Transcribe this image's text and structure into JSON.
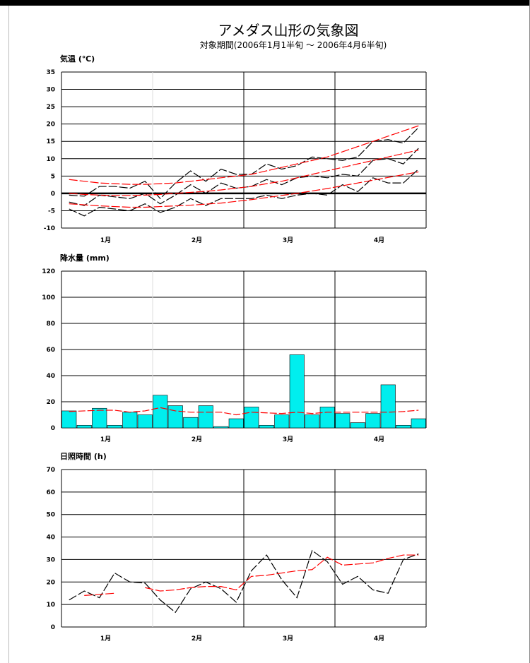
{
  "window": {
    "background": "#ffffff"
  },
  "header": {
    "title": "アメダス山形の気象図",
    "subtitle": "対象期間(2006年1月1半旬 〜 2006年4月6半旬)"
  },
  "colors": {
    "observed": "#000000",
    "normal": "#ff0000",
    "bars": "#00eeee",
    "grid": "#000000"
  },
  "chart_data": [
    {
      "type": "line",
      "title": "気温 (℃)",
      "ylim": [
        -10,
        35
      ],
      "yticks": [
        -10,
        -5,
        0,
        5,
        10,
        15,
        20,
        25,
        30,
        35
      ],
      "xtick_labels": [
        "1月",
        "2月",
        "3月",
        "4月"
      ],
      "grid": true,
      "zero_line": true,
      "x_count": 24,
      "series": [
        {
          "role": "observed-max",
          "style": "dashed",
          "color": "#000000",
          "values": [
            -0.5,
            -0.8,
            2,
            2,
            1.5,
            3.5,
            -1.5,
            3,
            6.5,
            3.5,
            7,
            5.5,
            5.5,
            8.5,
            7,
            8,
            10.5,
            10,
            9.5,
            10.5,
            15,
            15.5,
            14.5,
            19
          ]
        },
        {
          "role": "observed-mean",
          "style": "dashed",
          "color": "#000000",
          "values": [
            -2.5,
            -3.5,
            -0.5,
            -1,
            -1.5,
            0,
            -3,
            -0.5,
            2.5,
            0,
            3,
            1.5,
            2,
            4,
            2.5,
            4.5,
            5,
            4.5,
            5.5,
            5,
            9.5,
            10,
            8.5,
            13
          ]
        },
        {
          "role": "observed-min",
          "style": "dashed",
          "color": "#000000",
          "values": [
            -4.5,
            -6.5,
            -4,
            -4.5,
            -5,
            -3,
            -5.5,
            -4,
            -1.5,
            -3.5,
            -1.5,
            -1.5,
            -1.5,
            -0.5,
            -1.5,
            -0.5,
            0,
            -0.5,
            2.5,
            0.5,
            4.5,
            3,
            3,
            7
          ]
        },
        {
          "role": "normal-max",
          "style": "dashed",
          "color": "#ff0000",
          "values": [
            4,
            3.5,
            3,
            2.8,
            2.6,
            2.6,
            2.8,
            3,
            3.5,
            4,
            4.5,
            5,
            5.5,
            6.5,
            7.5,
            8.5,
            9.5,
            10.5,
            12,
            13.5,
            15,
            16.5,
            18,
            19.5
          ]
        },
        {
          "role": "normal-mean",
          "style": "dashed",
          "color": "#ff0000",
          "values": [
            0,
            -0.3,
            -0.5,
            -0.6,
            -0.6,
            -0.5,
            -0.3,
            0,
            0.3,
            0.6,
            1,
            1.5,
            2,
            2.8,
            3.5,
            4.5,
            5.5,
            6.5,
            7.5,
            8.5,
            9.5,
            10.5,
            11.5,
            12.5
          ]
        },
        {
          "role": "normal-min",
          "style": "dashed",
          "color": "#ff0000",
          "values": [
            -3,
            -3.3,
            -3.6,
            -3.8,
            -4,
            -4,
            -3.8,
            -3.6,
            -3.4,
            -3.1,
            -2.8,
            -2.3,
            -1.8,
            -1.2,
            -0.6,
            0,
            0.7,
            1.4,
            2.2,
            3,
            3.8,
            4.6,
            5.4,
            6.2
          ]
        }
      ]
    },
    {
      "type": "bar",
      "title": "降水量 (mm)",
      "ylim": [
        0,
        120
      ],
      "yticks": [
        0,
        20,
        40,
        60,
        80,
        100,
        120
      ],
      "xtick_labels": [
        "1月",
        "2月",
        "3月",
        "4月"
      ],
      "grid": true,
      "x_count": 24,
      "values": [
        13,
        2,
        15,
        2,
        12,
        10,
        25,
        17,
        8,
        17,
        1,
        7,
        16,
        2,
        10,
        56,
        10,
        16,
        11,
        4,
        11,
        33,
        2,
        7
      ],
      "normal": [
        12.5,
        13,
        13.5,
        13.5,
        12,
        13,
        15.5,
        13,
        12,
        12,
        12,
        10,
        12,
        11.5,
        11,
        12,
        11,
        12,
        12,
        12,
        12,
        12,
        12.5,
        13.5
      ]
    },
    {
      "type": "line",
      "title": "日照時間 (h)",
      "ylim": [
        0,
        70
      ],
      "yticks": [
        0,
        10,
        20,
        30,
        40,
        50,
        60,
        70
      ],
      "xtick_labels": [
        "1月",
        "2月",
        "3月",
        "4月"
      ],
      "grid": true,
      "x_count": 24,
      "series": [
        {
          "role": "observed",
          "style": "dashed",
          "color": "#000000",
          "values": [
            12,
            16,
            13,
            24,
            20,
            19.5,
            12,
            6.5,
            17,
            20,
            17,
            11,
            25,
            32,
            21,
            13,
            34,
            29,
            19,
            22.5,
            16.5,
            15,
            30,
            32.5
          ]
        },
        {
          "role": "normal",
          "style": "dashed",
          "color": "#ff0000",
          "values": [
            null,
            14,
            14.5,
            15,
            null,
            17.5,
            16,
            16.5,
            17.5,
            18,
            18,
            16.5,
            22.5,
            23,
            24,
            25,
            25.5,
            31,
            27.5,
            28,
            28.5,
            30.5,
            32,
            32
          ]
        }
      ]
    }
  ]
}
